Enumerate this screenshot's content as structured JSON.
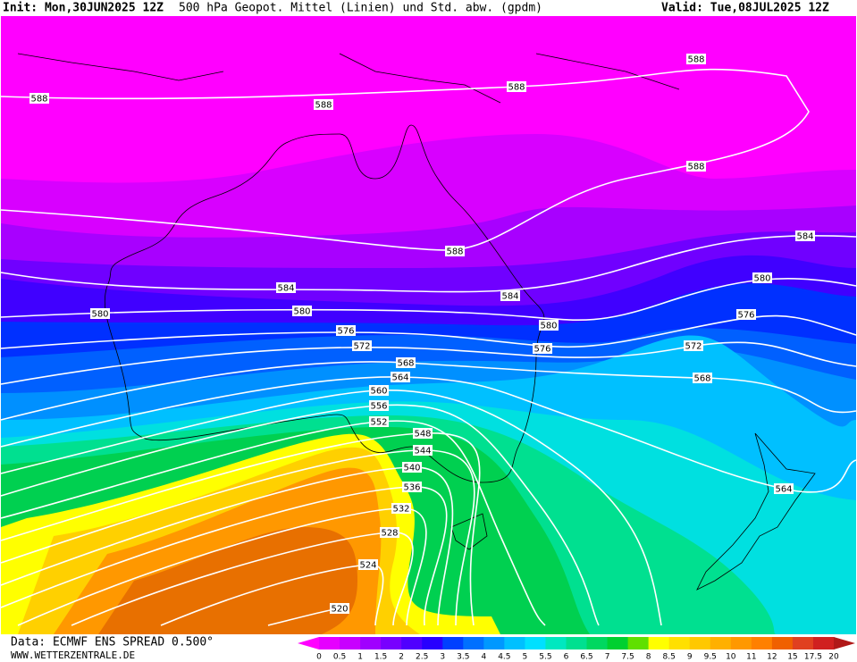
{
  "header": {
    "init": "Init: Mon,30JUN2025 12Z",
    "title": "500 hPa Geopot. Mittel (Linien) und Std. abw. (gpdm)",
    "valid": "Valid: Tue,08JUL2025 12Z"
  },
  "contour_labels": [
    588,
    588,
    588,
    588,
    588,
    588,
    584,
    584,
    584,
    580,
    580,
    580,
    580,
    576,
    576,
    576,
    572,
    572,
    568,
    568,
    564,
    564,
    560,
    556,
    552,
    548,
    544,
    540,
    536,
    532,
    528,
    524,
    520
  ],
  "colorbar": {
    "labels": [
      0,
      0.5,
      1,
      1.5,
      2,
      2.5,
      3,
      3.5,
      4,
      4.5,
      5,
      5.5,
      6,
      6.5,
      7,
      7.5,
      8,
      8.5,
      9,
      9.5,
      10,
      11,
      12,
      15,
      17.5,
      20
    ],
    "colors": [
      "#ff00ff",
      "#e600ff",
      "#c800ff",
      "#a000ff",
      "#7800ff",
      "#5000ff",
      "#2800ff",
      "#0040ff",
      "#0070ff",
      "#0098ff",
      "#00c0ff",
      "#00e0ff",
      "#00e8c0",
      "#00e090",
      "#00d860",
      "#00d030",
      "#60e000",
      "#ffff00",
      "#ffe000",
      "#ffc800",
      "#ffb000",
      "#ff9800",
      "#ff8000",
      "#f06000",
      "#e04020",
      "#d02020",
      "#b01818"
    ]
  },
  "footer": {
    "data": "Data: ECMWF ENS SPREAD 0.500°",
    "site": "WWW.WETTERZENTRALE.DE"
  }
}
